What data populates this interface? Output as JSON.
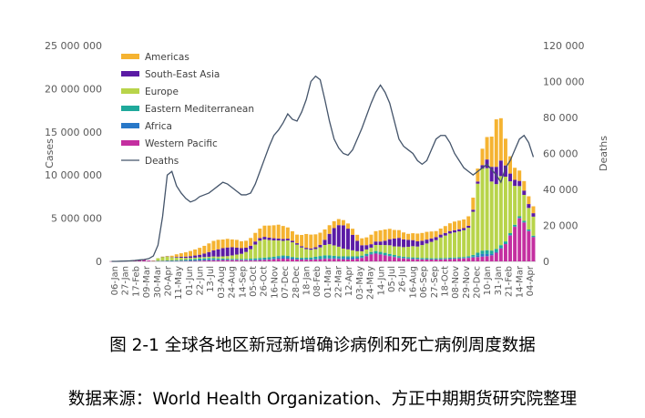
{
  "figure_caption": "图 2-1 全球各地区新冠新增确诊病例和死亡病例周度数据",
  "source_caption": "数据来源：World Health Organization、方正中期期货研究院整理",
  "chart_data": {
    "type": "bar",
    "stacked": true,
    "title": "",
    "xlabel": "",
    "ylabel": "Cases",
    "y2label": "Deaths",
    "ylim": [
      0,
      25000000
    ],
    "y2lim": [
      0,
      120000
    ],
    "yticks": [
      "0",
      "5 000 000",
      "10 000 000",
      "15 000 000",
      "20 000 000",
      "25 000 000"
    ],
    "y2ticks": [
      "0",
      "20 000",
      "40 000",
      "60 000",
      "80 000",
      "100 000",
      "120 000"
    ],
    "legend_position": "top-left",
    "xtick_labels": [
      "06-Jan",
      "27-Jan",
      "17-Feb",
      "09-Mar",
      "30-Mar",
      "20-Apr",
      "11-May",
      "01-Jun",
      "22-Jun",
      "13-Jul",
      "03-Aug",
      "24-Aug",
      "14-Sep",
      "05-Oct",
      "26-Oct",
      "16-Nov",
      "07-Dec",
      "28-Dec",
      "18-Jan",
      "08-Feb",
      "01-Mar",
      "22-Mar",
      "12-Apr",
      "03-May",
      "24-May",
      "14-Jun",
      "05-Jul",
      "26-Jul",
      "16-Aug",
      "06-Sep",
      "27-Sep",
      "18-Oct",
      "08-Nov",
      "29-Nov",
      "20-Dec",
      "10-Jan",
      "31-Jan",
      "21-Feb",
      "14-Mar",
      "04-Apr"
    ],
    "series": [
      {
        "name": "Americas",
        "color": "#F5B331",
        "values": [
          0,
          0,
          0,
          0,
          0,
          0,
          0,
          0,
          0,
          0,
          0,
          10000,
          50000,
          150000,
          300000,
          400000,
          500000,
          600000,
          700000,
          800000,
          900000,
          1000000,
          1100000,
          1100000,
          1000000,
          1000000,
          900000,
          900000,
          800000,
          800000,
          900000,
          1000000,
          1100000,
          1300000,
          1400000,
          1500000,
          1600000,
          1500000,
          1300000,
          1100000,
          1000000,
          1300000,
          1600000,
          1600000,
          1500000,
          1400000,
          1200000,
          1000000,
          800000,
          700000,
          600000,
          600000,
          700000,
          700000,
          800000,
          900000,
          1100000,
          1200000,
          1300000,
          1300000,
          1200000,
          1000000,
          900000,
          800000,
          700000,
          800000,
          900000,
          900000,
          900000,
          800000,
          700000,
          700000,
          800000,
          900000,
          1000000,
          1000000,
          1000000,
          1100000,
          1400000,
          1500000,
          1900000,
          2600000,
          3500000,
          5500000,
          4900000,
          3100000,
          2000000,
          1400000,
          1200000,
          1100000,
          900000,
          800000
        ]
      },
      {
        "name": "South-East Asia",
        "color": "#5B1BA5",
        "values": [
          0,
          0,
          0,
          0,
          0,
          0,
          0,
          0,
          0,
          0,
          0,
          10000,
          20000,
          40000,
          80000,
          120000,
          150000,
          200000,
          250000,
          300000,
          400000,
          550000,
          700000,
          850000,
          950000,
          1000000,
          950000,
          800000,
          650000,
          500000,
          400000,
          350000,
          300000,
          300000,
          280000,
          250000,
          230000,
          220000,
          200000,
          180000,
          160000,
          150000,
          150000,
          150000,
          200000,
          300000,
          600000,
          1200000,
          2000000,
          2500000,
          2700000,
          2400000,
          1800000,
          1200000,
          700000,
          500000,
          400000,
          400000,
          400000,
          500000,
          700000,
          900000,
          1000000,
          900000,
          800000,
          700000,
          600000,
          500000,
          450000,
          400000,
          350000,
          330000,
          300000,
          280000,
          260000,
          250000,
          240000,
          230000,
          230000,
          250000,
          400000,
          1000000,
          1700000,
          2000000,
          1800000,
          1300000,
          900000,
          700000,
          600000,
          500000,
          450000,
          400000
        ]
      },
      {
        "name": "Europe",
        "color": "#B8D44A",
        "values": [
          0,
          0,
          0,
          0,
          0,
          0,
          0,
          0,
          0,
          50000,
          300000,
          450000,
          450000,
          350000,
          300000,
          250000,
          200000,
          150000,
          150000,
          150000,
          150000,
          150000,
          200000,
          200000,
          250000,
          300000,
          400000,
          500000,
          600000,
          800000,
          1100000,
          1600000,
          2000000,
          2100000,
          2000000,
          1900000,
          1800000,
          1700000,
          1800000,
          1700000,
          1500000,
          1200000,
          1000000,
          900000,
          900000,
          1000000,
          1200000,
          1300000,
          1200000,
          1100000,
          900000,
          800000,
          700000,
          600000,
          500000,
          500000,
          500000,
          700000,
          800000,
          900000,
          1000000,
          1000000,
          1100000,
          1100000,
          1200000,
          1300000,
          1300000,
          1500000,
          1700000,
          1900000,
          2100000,
          2400000,
          2600000,
          2800000,
          2900000,
          3000000,
          3100000,
          3300000,
          5000000,
          8000000,
          9500000,
          9500000,
          8000000,
          7500000,
          8000000,
          7500000,
          6000000,
          4500000,
          3500000,
          3000000,
          2500000,
          2200000
        ]
      },
      {
        "name": "Eastern Mediterranean",
        "color": "#1FA99B",
        "values": [
          0,
          0,
          0,
          0,
          0,
          0,
          0,
          0,
          0,
          0,
          20000,
          30000,
          50000,
          60000,
          80000,
          100000,
          120000,
          150000,
          160000,
          160000,
          150000,
          150000,
          140000,
          130000,
          120000,
          110000,
          100000,
          100000,
          100000,
          110000,
          130000,
          150000,
          170000,
          180000,
          190000,
          180000,
          170000,
          160000,
          150000,
          140000,
          140000,
          150000,
          170000,
          200000,
          250000,
          300000,
          320000,
          300000,
          250000,
          200000,
          180000,
          160000,
          150000,
          150000,
          170000,
          200000,
          230000,
          250000,
          260000,
          250000,
          230000,
          200000,
          180000,
          160000,
          150000,
          140000,
          130000,
          120000,
          110000,
          100000,
          100000,
          100000,
          100000,
          110000,
          110000,
          110000,
          120000,
          130000,
          200000,
          300000,
          400000,
          450000,
          400000,
          350000,
          300000,
          250000,
          220000,
          200000,
          180000,
          160000,
          150000,
          140000
        ]
      },
      {
        "name": "Africa",
        "color": "#2878C8",
        "values": [
          0,
          0,
          0,
          0,
          0,
          0,
          0,
          0,
          0,
          0,
          5000,
          5000,
          10000,
          15000,
          20000,
          30000,
          40000,
          50000,
          60000,
          80000,
          100000,
          110000,
          100000,
          80000,
          60000,
          50000,
          40000,
          40000,
          40000,
          50000,
          60000,
          70000,
          80000,
          80000,
          80000,
          100000,
          150000,
          200000,
          180000,
          120000,
          80000,
          60000,
          50000,
          50000,
          60000,
          70000,
          80000,
          90000,
          100000,
          120000,
          150000,
          200000,
          180000,
          130000,
          100000,
          80000,
          60000,
          50000,
          40000,
          40000,
          40000,
          40000,
          40000,
          40000,
          40000,
          40000,
          40000,
          40000,
          40000,
          40000,
          40000,
          40000,
          40000,
          40000,
          40000,
          40000,
          40000,
          60000,
          100000,
          200000,
          300000,
          250000,
          150000,
          100000,
          80000,
          60000,
          50000,
          40000,
          40000,
          40000,
          40000,
          40000
        ]
      },
      {
        "name": "Western Pacific",
        "color": "#C42FA0",
        "values": [
          2000,
          5000,
          10000,
          20000,
          40000,
          80000,
          150000,
          200000,
          100000,
          50000,
          40000,
          40000,
          40000,
          40000,
          40000,
          40000,
          40000,
          50000,
          60000,
          80000,
          100000,
          120000,
          130000,
          140000,
          150000,
          150000,
          150000,
          150000,
          140000,
          130000,
          120000,
          130000,
          150000,
          180000,
          200000,
          250000,
          300000,
          320000,
          300000,
          250000,
          220000,
          200000,
          200000,
          200000,
          220000,
          250000,
          300000,
          300000,
          300000,
          280000,
          250000,
          230000,
          250000,
          300000,
          400000,
          600000,
          800000,
          900000,
          800000,
          700000,
          600000,
          500000,
          400000,
          350000,
          300000,
          280000,
          250000,
          230000,
          220000,
          220000,
          220000,
          230000,
          250000,
          280000,
          300000,
          320000,
          350000,
          400000,
          450000,
          500000,
          550000,
          600000,
          700000,
          1000000,
          1500000,
          2000000,
          3000000,
          4000000,
          5000000,
          4500000,
          3500000,
          2800000
        ]
      },
      {
        "name": "Deaths",
        "color": "#44546A",
        "type": "line",
        "axis": "right",
        "values": [
          0,
          0,
          100,
          200,
          300,
          500,
          800,
          1000,
          1500,
          3000,
          9000,
          25000,
          48000,
          50000,
          42000,
          38000,
          35000,
          33000,
          34000,
          36000,
          37000,
          38000,
          40000,
          42000,
          44000,
          43000,
          41000,
          39000,
          37000,
          37000,
          38000,
          43000,
          50000,
          57000,
          64000,
          70000,
          73000,
          77000,
          82000,
          79000,
          78000,
          83000,
          90000,
          100000,
          103000,
          101000,
          90000,
          78000,
          68000,
          63000,
          60000,
          59000,
          62000,
          68000,
          74000,
          81000,
          88000,
          94000,
          98000,
          94000,
          88000,
          78000,
          68000,
          64000,
          62000,
          60000,
          56000,
          54000,
          56000,
          62000,
          68000,
          70000,
          70000,
          66000,
          60000,
          56000,
          52000,
          50000,
          48000,
          50000,
          52000,
          54000,
          51000,
          48000,
          44000,
          52000,
          56000,
          62000,
          68000,
          70000,
          66000,
          58000
        ]
      }
    ]
  }
}
